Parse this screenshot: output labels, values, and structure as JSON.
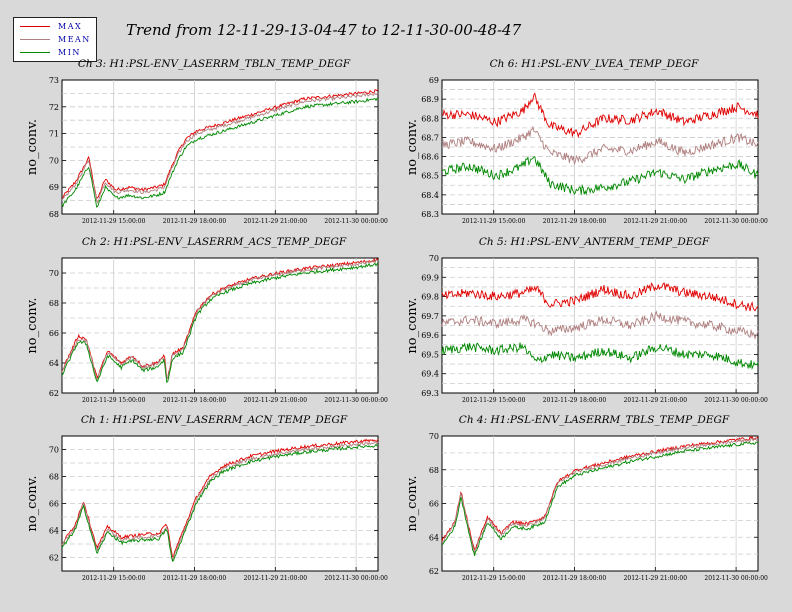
{
  "main_title": "Trend from 12-11-29-13-04-47 to 12-11-30-00-48-47",
  "legend": [
    {
      "label": "MAX",
      "color": "#e00000"
    },
    {
      "label": "MEAN",
      "color": "#b08080"
    },
    {
      "label": "MIN",
      "color": "#008800"
    }
  ],
  "chart_data": [
    {
      "type": "line",
      "title": "Ch 3: H1:PSL-ENV_LASERRM_TBLN_TEMP_DEGF",
      "ylabel": "no_conv.",
      "ylim": [
        68,
        73
      ],
      "yticks": [
        68,
        69,
        70,
        71,
        72,
        73
      ],
      "xlim": [
        0,
        11.733
      ],
      "xticks": [
        {
          "pos": 1.92,
          "label": "2012-11-29 15:00:00"
        },
        {
          "pos": 4.92,
          "label": "2012-11-29 18:00:00"
        },
        {
          "pos": 7.92,
          "label": "2012-11-29 21:00:00"
        },
        {
          "pos": 10.92,
          "label": "2012-11-30 00:00:00"
        }
      ],
      "x": [
        0,
        0.5,
        1.0,
        1.3,
        1.6,
        2.0,
        2.5,
        3.0,
        3.5,
        3.8,
        4.0,
        4.3,
        4.6,
        5.0,
        6.0,
        7.0,
        8.0,
        9.0,
        10.0,
        11.0,
        11.733
      ],
      "series": [
        {
          "name": "MAX",
          "values": [
            68.6,
            69.2,
            70.1,
            68.5,
            69.3,
            68.9,
            69.0,
            68.9,
            69.0,
            69.1,
            69.6,
            70.3,
            70.8,
            71.1,
            71.4,
            71.7,
            72.0,
            72.3,
            72.4,
            72.5,
            72.6
          ]
        },
        {
          "name": "MEAN",
          "values": [
            68.5,
            69.1,
            70.0,
            68.4,
            69.2,
            68.8,
            68.9,
            68.8,
            68.9,
            69.0,
            69.5,
            70.2,
            70.7,
            71.0,
            71.3,
            71.6,
            71.9,
            72.2,
            72.3,
            72.4,
            72.5
          ]
        },
        {
          "name": "MIN",
          "values": [
            68.3,
            68.9,
            69.8,
            68.2,
            69.0,
            68.6,
            68.7,
            68.6,
            68.7,
            68.8,
            69.3,
            70.0,
            70.5,
            70.8,
            71.1,
            71.4,
            71.7,
            72.0,
            72.1,
            72.2,
            72.3
          ]
        }
      ],
      "grid": true
    },
    {
      "type": "line",
      "title": "Ch 6: H1:PSL-ENV_LVEA_TEMP_DEGF",
      "ylabel": "no_conv.",
      "ylim": [
        68.3,
        69
      ],
      "yticks": [
        68.3,
        68.4,
        68.5,
        68.6,
        68.7,
        68.8,
        68.9,
        69
      ],
      "xlim": [
        0,
        11.733
      ],
      "xticks": [
        {
          "pos": 1.92,
          "label": "2012-11-29 15:00:00"
        },
        {
          "pos": 4.92,
          "label": "2012-11-29 18:00:00"
        },
        {
          "pos": 7.92,
          "label": "2012-11-29 21:00:00"
        },
        {
          "pos": 10.92,
          "label": "2012-11-30 00:00:00"
        }
      ],
      "x": [
        0,
        1.0,
        2.0,
        3.0,
        3.4,
        4.0,
        5.0,
        6.0,
        7.0,
        8.0,
        9.0,
        10.0,
        11.0,
        11.733
      ],
      "series": [
        {
          "name": "MAX",
          "values": [
            68.82,
            68.82,
            68.78,
            68.84,
            68.92,
            68.76,
            68.72,
            68.8,
            68.79,
            68.84,
            68.78,
            68.82,
            68.86,
            68.82
          ]
        },
        {
          "name": "MEAN",
          "values": [
            68.66,
            68.68,
            68.64,
            68.7,
            68.74,
            68.62,
            68.58,
            68.64,
            68.63,
            68.68,
            68.62,
            68.66,
            68.7,
            68.66
          ]
        },
        {
          "name": "MIN",
          "values": [
            68.52,
            68.55,
            68.5,
            68.55,
            68.6,
            68.46,
            68.42,
            68.44,
            68.47,
            68.52,
            68.48,
            68.53,
            68.56,
            68.5
          ]
        }
      ],
      "grid": true
    },
    {
      "type": "line",
      "title": "Ch 2: H1:PSL-ENV_LASERRM_ACS_TEMP_DEGF",
      "ylabel": "no_conv.",
      "ylim": [
        62,
        71
      ],
      "yticks": [
        62,
        64,
        66,
        68,
        70
      ],
      "xlim": [
        0,
        11.733
      ],
      "xticks": [
        {
          "pos": 1.92,
          "label": "2012-11-29 15:00:00"
        },
        {
          "pos": 4.92,
          "label": "2012-11-29 18:00:00"
        },
        {
          "pos": 7.92,
          "label": "2012-11-29 21:00:00"
        },
        {
          "pos": 10.92,
          "label": "2012-11-30 00:00:00"
        }
      ],
      "x": [
        0,
        0.6,
        0.9,
        1.3,
        1.7,
        2.2,
        2.6,
        3.0,
        3.5,
        3.8,
        3.9,
        4.1,
        4.5,
        5.0,
        5.5,
        6.0,
        7.0,
        8.0,
        9.0,
        10.0,
        11.0,
        11.733
      ],
      "series": [
        {
          "name": "MAX",
          "values": [
            63.5,
            65.8,
            65.6,
            63.0,
            64.8,
            64.0,
            64.5,
            63.8,
            64.0,
            64.5,
            62.8,
            64.6,
            65.0,
            67.5,
            68.5,
            69.0,
            69.6,
            70.0,
            70.3,
            70.5,
            70.7,
            70.9
          ]
        },
        {
          "name": "MEAN",
          "values": [
            63.4,
            65.6,
            65.5,
            62.9,
            64.7,
            63.9,
            64.4,
            63.7,
            63.9,
            64.4,
            62.7,
            64.5,
            64.9,
            67.4,
            68.4,
            68.9,
            69.5,
            69.9,
            70.2,
            70.4,
            70.6,
            70.8
          ]
        },
        {
          "name": "MIN",
          "values": [
            63.2,
            65.4,
            65.3,
            62.7,
            64.5,
            63.7,
            64.2,
            63.5,
            63.7,
            64.2,
            62.5,
            64.3,
            64.7,
            67.2,
            68.2,
            68.7,
            69.3,
            69.7,
            70.0,
            70.2,
            70.4,
            70.6
          ]
        }
      ],
      "grid": true
    },
    {
      "type": "line",
      "title": "Ch 5: H1:PSL-ENV_ANTERM_TEMP_DEGF",
      "ylabel": "no_conv.",
      "ylim": [
        69.3,
        70
      ],
      "yticks": [
        69.3,
        69.4,
        69.5,
        69.6,
        69.7,
        69.8,
        69.9,
        70
      ],
      "xlim": [
        0,
        11.733
      ],
      "xticks": [
        {
          "pos": 1.92,
          "label": "2012-11-29 15:00:00"
        },
        {
          "pos": 4.92,
          "label": "2012-11-29 18:00:00"
        },
        {
          "pos": 7.92,
          "label": "2012-11-29 21:00:00"
        },
        {
          "pos": 10.92,
          "label": "2012-11-30 00:00:00"
        }
      ],
      "x": [
        0,
        1.0,
        2.0,
        3.0,
        3.5,
        4.0,
        5.0,
        6.0,
        7.0,
        8.0,
        9.0,
        10.0,
        11.0,
        11.733
      ],
      "series": [
        {
          "name": "MAX",
          "values": [
            69.8,
            69.82,
            69.8,
            69.82,
            69.84,
            69.76,
            69.78,
            69.84,
            69.8,
            69.86,
            69.82,
            69.8,
            69.76,
            69.74
          ]
        },
        {
          "name": "MEAN",
          "values": [
            69.66,
            69.68,
            69.66,
            69.68,
            69.66,
            69.62,
            69.64,
            69.68,
            69.65,
            69.7,
            69.67,
            69.65,
            69.62,
            69.6
          ]
        },
        {
          "name": "MIN",
          "values": [
            69.52,
            69.54,
            69.52,
            69.54,
            69.46,
            69.5,
            69.48,
            69.52,
            69.48,
            69.54,
            69.5,
            69.5,
            69.46,
            69.44
          ]
        }
      ],
      "grid": true
    },
    {
      "type": "line",
      "title": "Ch 1: H1:PSL-ENV_LASERRM_ACN_TEMP_DEGF",
      "ylabel": "no_conv.",
      "ylim": [
        61,
        71
      ],
      "yticks": [
        62,
        64,
        66,
        68,
        70
      ],
      "xlim": [
        0,
        11.733
      ],
      "xticks": [
        {
          "pos": 1.92,
          "label": "2012-11-29 15:00:00"
        },
        {
          "pos": 4.92,
          "label": "2012-11-29 18:00:00"
        },
        {
          "pos": 7.92,
          "label": "2012-11-29 21:00:00"
        },
        {
          "pos": 10.92,
          "label": "2012-11-30 00:00:00"
        }
      ],
      "x": [
        0,
        0.5,
        0.8,
        1.3,
        1.7,
        2.2,
        3.0,
        3.6,
        3.9,
        4.1,
        4.6,
        5.0,
        5.5,
        6.0,
        7.0,
        8.0,
        9.0,
        10.0,
        11.0,
        11.733
      ],
      "series": [
        {
          "name": "MAX",
          "values": [
            63.0,
            64.5,
            66.2,
            62.7,
            64.3,
            63.5,
            63.7,
            63.8,
            64.5,
            62.0,
            64.5,
            66.5,
            68.0,
            68.8,
            69.5,
            69.9,
            70.2,
            70.4,
            70.6,
            70.7
          ]
        },
        {
          "name": "MEAN",
          "values": [
            62.9,
            64.3,
            66.0,
            62.5,
            64.1,
            63.3,
            63.5,
            63.6,
            64.3,
            61.8,
            64.3,
            66.3,
            67.8,
            68.6,
            69.3,
            69.7,
            70.0,
            70.2,
            70.4,
            70.5
          ]
        },
        {
          "name": "MIN",
          "values": [
            62.7,
            64.1,
            65.8,
            62.3,
            63.9,
            63.1,
            63.3,
            63.4,
            64.1,
            61.6,
            64.1,
            66.1,
            67.6,
            68.4,
            69.1,
            69.5,
            69.8,
            70.0,
            70.2,
            70.3
          ]
        }
      ],
      "grid": true
    },
    {
      "type": "line",
      "title": "Ch 4: H1:PSL-ENV_LASERRM_TBLS_TEMP_DEGF",
      "ylabel": "no_conv.",
      "ylim": [
        62,
        70
      ],
      "yticks": [
        62,
        64,
        66,
        68,
        70
      ],
      "xlim": [
        0,
        11.733
      ],
      "xticks": [
        {
          "pos": 1.92,
          "label": "2012-11-29 15:00:00"
        },
        {
          "pos": 4.92,
          "label": "2012-11-29 18:00:00"
        },
        {
          "pos": 7.92,
          "label": "2012-11-29 21:00:00"
        },
        {
          "pos": 10.92,
          "label": "2012-11-30 00:00:00"
        }
      ],
      "x": [
        0,
        0.5,
        0.7,
        1.2,
        1.7,
        2.2,
        2.6,
        3.2,
        3.5,
        3.8,
        4.3,
        5.0,
        6.0,
        7.0,
        8.0,
        9.0,
        10.0,
        11.0,
        11.733
      ],
      "series": [
        {
          "name": "MAX",
          "values": [
            63.8,
            65.0,
            66.7,
            63.2,
            65.2,
            64.2,
            64.9,
            64.8,
            65.0,
            65.2,
            67.3,
            68.0,
            68.4,
            68.8,
            69.1,
            69.4,
            69.6,
            69.8,
            69.9
          ]
        },
        {
          "name": "MEAN",
          "values": [
            63.7,
            64.9,
            66.6,
            63.1,
            65.1,
            64.1,
            64.8,
            64.7,
            64.9,
            65.1,
            67.2,
            67.9,
            68.3,
            68.7,
            69.0,
            69.3,
            69.5,
            69.7,
            69.8
          ]
        },
        {
          "name": "MIN",
          "values": [
            63.5,
            64.7,
            66.4,
            62.9,
            64.9,
            63.9,
            64.6,
            64.5,
            64.7,
            64.9,
            67.0,
            67.7,
            68.1,
            68.5,
            68.8,
            69.1,
            69.3,
            69.5,
            69.6
          ]
        }
      ],
      "grid": true
    }
  ]
}
